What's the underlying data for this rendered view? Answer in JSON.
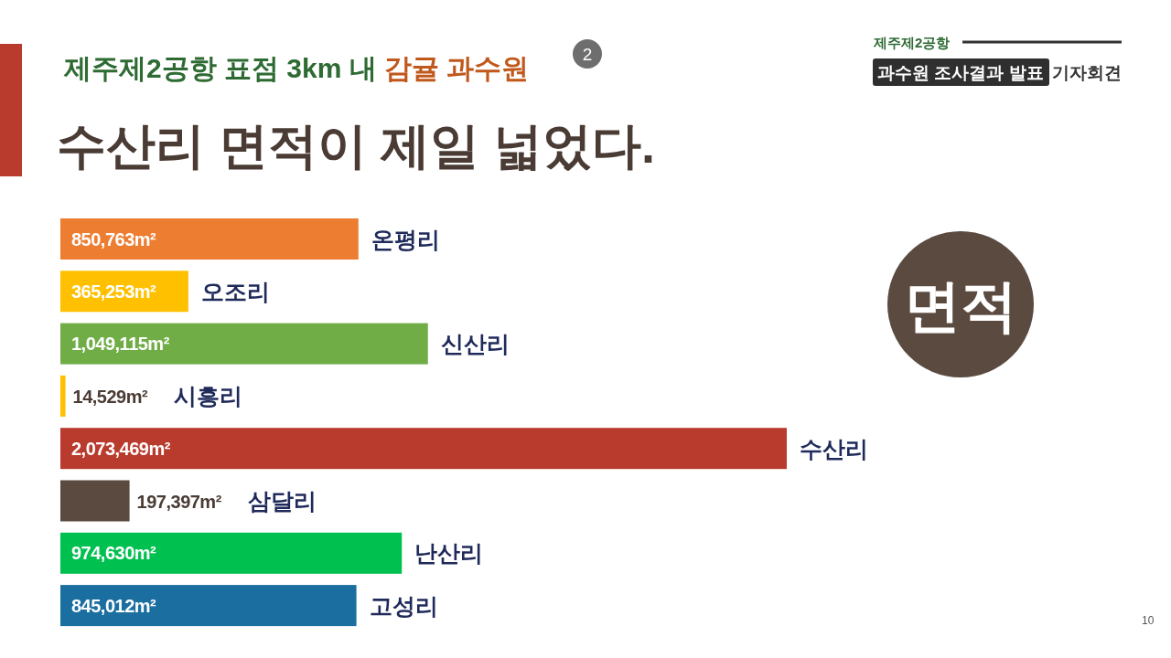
{
  "chart_data": {
    "type": "bar",
    "orientation": "horizontal",
    "title": "제주제2공항 표점 3km 내 감귤 과수원",
    "subtitle": "수산리 면적이 제일 넓었다.",
    "categories": [
      "온평리",
      "오조리",
      "신산리",
      "시흥리",
      "수산리",
      "삼달리",
      "난산리",
      "고성리"
    ],
    "values": [
      850763,
      365253,
      1049115,
      14529,
      2073469,
      197397,
      974630,
      845012
    ],
    "value_labels": [
      "850,763m²",
      "365,253m²",
      "1,049,115m²",
      "14,529m²",
      "2,073,469m²",
      "197,397m²",
      "974,630m²",
      "845,012m²"
    ],
    "colors": [
      "#ed7d31",
      "#ffc000",
      "#70ad47",
      "#ffc000",
      "#b83b2d",
      "#5b4a3f",
      "#00c04f",
      "#1a6fa0"
    ],
    "annotations": [
      "2",
      "면적",
      "제주제2공항",
      "과수원 조사결과 발표",
      "기자회견",
      "10"
    ]
  }
}
